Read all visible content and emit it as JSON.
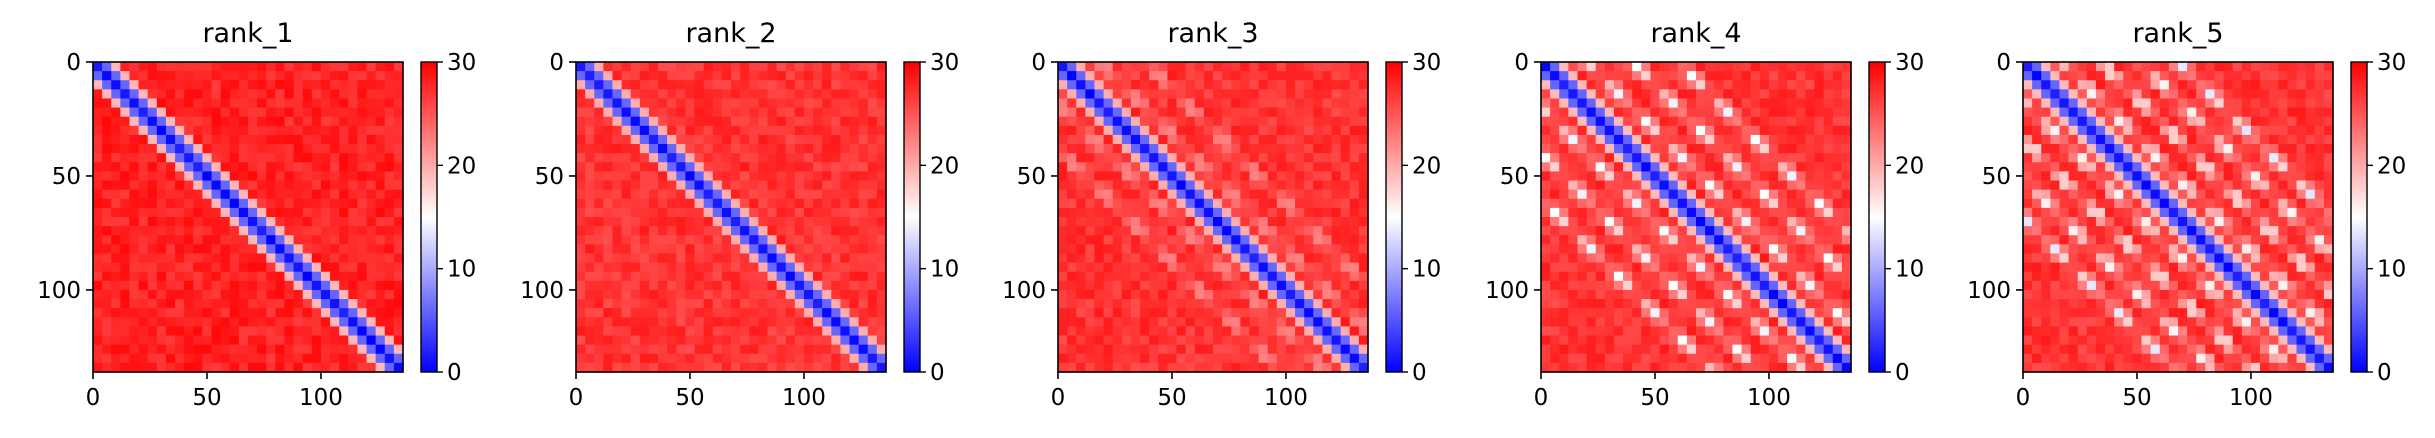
{
  "colorbar": {
    "vmin": 0,
    "vmax": 30,
    "ticks": [
      "0",
      "10",
      "20",
      "30"
    ],
    "colormap": [
      "#0000ff",
      "#ffffff",
      "#ff0000"
    ]
  },
  "chart_data": [
    {
      "type": "heatmap",
      "title": "rank_1",
      "matrix_size": 136,
      "xticks": [
        "0",
        "50",
        "100"
      ],
      "yticks": [
        "0",
        "50",
        "100"
      ],
      "diagonal_value": 0,
      "near_diagonal_value": 10,
      "background_value": 28,
      "off_diagonal_bands": [],
      "band_min_value": null
    },
    {
      "type": "heatmap",
      "title": "rank_2",
      "matrix_size": 136,
      "xticks": [
        "0",
        "50",
        "100"
      ],
      "yticks": [
        "0",
        "50",
        "100"
      ],
      "diagonal_value": 0,
      "near_diagonal_value": 11,
      "background_value": 27,
      "off_diagonal_bands": [],
      "band_min_value": null
    },
    {
      "type": "heatmap",
      "title": "rank_3",
      "matrix_size": 136,
      "xticks": [
        "0",
        "50",
        "100"
      ],
      "yticks": [
        "0",
        "50",
        "100"
      ],
      "diagonal_value": 0,
      "near_diagonal_value": 11,
      "background_value": 27,
      "off_diagonal_bands": [
        18,
        38
      ],
      "band_min_value": 20
    },
    {
      "type": "heatmap",
      "title": "rank_4",
      "matrix_size": 136,
      "xticks": [
        "0",
        "50",
        "100"
      ],
      "yticks": [
        "0",
        "50",
        "100"
      ],
      "diagonal_value": 0,
      "near_diagonal_value": 10,
      "background_value": 27,
      "off_diagonal_bands": [
        20,
        40,
        60
      ],
      "band_min_value": 14
    },
    {
      "type": "heatmap",
      "title": "rank_5",
      "matrix_size": 136,
      "xticks": [
        "0",
        "50",
        "100"
      ],
      "yticks": [
        "0",
        "50",
        "100"
      ],
      "diagonal_value": 0,
      "near_diagonal_value": 10,
      "background_value": 27,
      "off_diagonal_bands": [
        17,
        34,
        51,
        68
      ],
      "band_min_value": 13
    }
  ]
}
